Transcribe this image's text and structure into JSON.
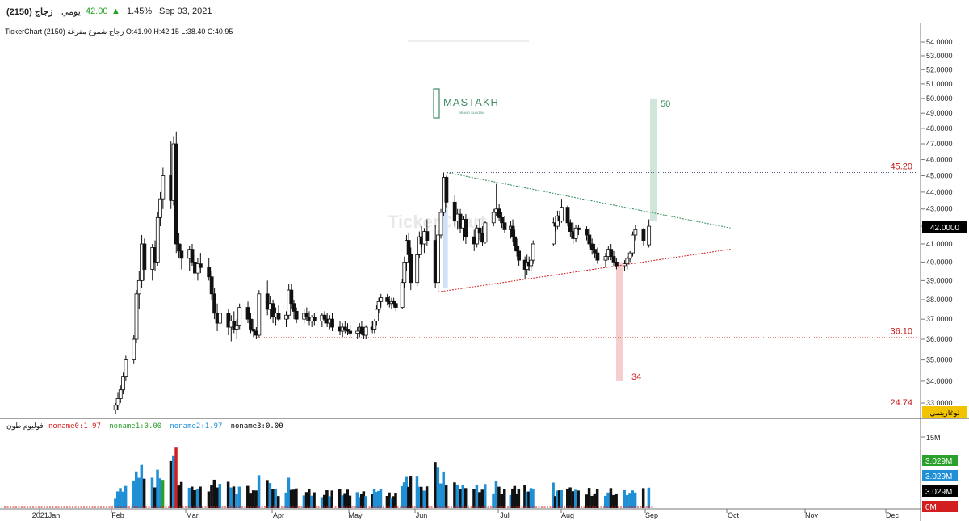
{
  "header": {
    "symbol": "زجاج (2150)",
    "period": "يومي",
    "price": "42.00",
    "change_pct": "1.45%",
    "date": "Sep 03, 2021",
    "up_color": "#22a022"
  },
  "chart_title": "TickerChart زجاج شموع مفرغة (2150)  O:41.90  H:42.15  L:38.40  C:40.95",
  "logo": {
    "text": "MASTAKH",
    "subtext": "BRAND SLOGAN",
    "color": "#3f8a66"
  },
  "watermark": "TickerChart",
  "chart_data": {
    "type": "candlestick",
    "price_axis": {
      "ticks": [
        "54.0000",
        "53.0000",
        "52.0000",
        "51.0000",
        "50.0000",
        "49.0000",
        "48.0000",
        "47.0000",
        "46.0000",
        "45.0000",
        "44.0000",
        "43.0000",
        "42.0000",
        "41.0000",
        "40.0000",
        "39.0000",
        "38.0000",
        "37.0000",
        "36.0000",
        "35.0000",
        "34.0000",
        "33.0000"
      ],
      "current_label": "42.0000",
      "log_label": "لوغاريتمي",
      "range": [
        32.5,
        54.5
      ]
    },
    "levels": [
      {
        "label": "45.20",
        "value": 45.2,
        "color": "#c01818"
      },
      {
        "label": "36.10",
        "value": 36.1,
        "color": "#c01818"
      },
      {
        "label": "24.74",
        "value": 24.74,
        "color": "#c01818"
      }
    ],
    "targets": [
      {
        "label": "50",
        "from": 42.3,
        "to": 50.0,
        "color": "#2e8b57"
      },
      {
        "label": "34",
        "from": 40.0,
        "to": 34.0,
        "color": "#d21e1e"
      }
    ],
    "triangle": {
      "upper": {
        "from": [
          "Jun 10",
          45.2
        ],
        "to": [
          "Sep 30",
          41.9
        ],
        "color": "#2e8b57"
      },
      "lower": {
        "from": [
          "Jun 7",
          38.4
        ],
        "to": [
          "Sep 30",
          40.7
        ],
        "color": "#d21e1e"
      }
    },
    "months": [
      "2021Jan",
      "Feb",
      "Mar",
      "Apr",
      "May",
      "Jun",
      "Jul",
      "Aug",
      "Sep",
      "Oct",
      "Nov",
      "Dec"
    ],
    "ohlc": [
      [
        "Jan 31",
        32.7,
        33.0,
        32.5,
        32.9
      ],
      [
        "Feb 1",
        32.9,
        33.5,
        32.7,
        33.2
      ],
      [
        "Feb 2",
        33.2,
        33.8,
        33.0,
        33.6
      ],
      [
        "Feb 3",
        33.6,
        34.4,
        33.4,
        34.2
      ],
      [
        "Feb 4",
        34.2,
        35.2,
        34.0,
        35.0
      ],
      [
        "Feb 7",
        35.0,
        36.2,
        34.8,
        36.0
      ],
      [
        "Feb 8",
        36.0,
        38.5,
        35.8,
        38.3
      ],
      [
        "Feb 9",
        38.3,
        39.5,
        37.5,
        39.0
      ],
      [
        "Feb 10",
        39.0,
        41.5,
        38.6,
        41.0
      ],
      [
        "Feb 11",
        41.0,
        41.3,
        39.0,
        39.6
      ],
      [
        "Feb 14",
        39.6,
        41.0,
        39.0,
        40.8
      ],
      [
        "Feb 15",
        40.8,
        41.2,
        39.5,
        40.0
      ],
      [
        "Feb 16",
        40.0,
        42.8,
        39.8,
        42.5
      ],
      [
        "Feb 17",
        42.5,
        44.0,
        42.0,
        43.6
      ],
      [
        "Feb 18",
        43.6,
        45.5,
        43.0,
        45.0
      ],
      [
        "Feb 21",
        45.0,
        47.2,
        43.0,
        43.5
      ],
      [
        "Feb 22",
        43.5,
        47.5,
        43.2,
        47.0
      ],
      [
        "Feb 23",
        47.0,
        47.8,
        40.5,
        41.0
      ],
      [
        "Feb 24",
        41.0,
        41.6,
        40.2,
        40.6
      ],
      [
        "Feb 25",
        40.6,
        41.0,
        39.6,
        40.2
      ],
      [
        "Feb 28",
        40.2,
        40.9,
        39.5,
        40.7
      ],
      [
        "Mar 1",
        40.7,
        41.0,
        39.8,
        40.0
      ],
      [
        "Mar 2",
        40.0,
        40.4,
        39.0,
        39.4
      ],
      [
        "Mar 3",
        39.4,
        40.2,
        39.0,
        39.9
      ],
      [
        "Mar 4",
        39.9,
        40.5,
        39.4,
        39.7
      ],
      [
        "Mar 7",
        39.7,
        40.2,
        39.0,
        39.2
      ],
      [
        "Mar 8",
        39.2,
        39.5,
        38.0,
        38.3
      ],
      [
        "Mar 9",
        38.3,
        38.6,
        37.0,
        37.3
      ],
      [
        "Mar 10",
        37.3,
        37.8,
        36.4,
        36.8
      ],
      [
        "Mar 11",
        36.8,
        37.6,
        36.2,
        37.3
      ],
      [
        "Mar 14",
        37.3,
        37.5,
        36.2,
        36.6
      ],
      [
        "Mar 15",
        36.6,
        37.2,
        35.9,
        36.9
      ],
      [
        "Mar 16",
        36.9,
        37.4,
        36.3,
        36.5
      ],
      [
        "Mar 17",
        36.5,
        37.0,
        36.0,
        36.7
      ],
      [
        "Mar 18",
        36.7,
        37.8,
        36.5,
        37.6
      ],
      [
        "Mar 21",
        37.6,
        37.9,
        36.8,
        37.0
      ],
      [
        "Mar 22",
        37.0,
        37.3,
        36.3,
        36.5
      ],
      [
        "Mar 23",
        36.5,
        37.0,
        36.1,
        36.4
      ],
      [
        "Mar 24",
        36.4,
        36.6,
        36.0,
        36.2
      ],
      [
        "Mar 25",
        36.2,
        38.5,
        36.1,
        38.3
      ],
      [
        "Mar 28",
        38.3,
        39.0,
        37.2,
        37.5
      ],
      [
        "Mar 29",
        37.5,
        38.2,
        37.0,
        37.8
      ],
      [
        "Mar 30",
        37.8,
        38.0,
        36.8,
        37.1
      ],
      [
        "Mar 31",
        37.1,
        37.6,
        36.7,
        37.3
      ],
      [
        "Apr 1",
        37.3,
        37.7,
        36.9,
        37.0
      ],
      [
        "Apr 4",
        37.0,
        37.4,
        36.6,
        37.2
      ],
      [
        "Apr 5",
        37.2,
        38.8,
        37.0,
        38.5
      ],
      [
        "Apr 6",
        38.5,
        38.8,
        37.5,
        37.8
      ],
      [
        "Apr 7",
        37.8,
        38.0,
        37.0,
        37.4
      ],
      [
        "Apr 8",
        37.4,
        37.6,
        36.8,
        37.0
      ],
      [
        "Apr 11",
        37.0,
        37.5,
        36.8,
        37.3
      ],
      [
        "Apr 12",
        37.3,
        37.6,
        36.9,
        37.1
      ],
      [
        "Apr 13",
        37.1,
        37.4,
        36.7,
        36.9
      ],
      [
        "Apr 14",
        36.9,
        37.2,
        36.6,
        37.1
      ],
      [
        "Apr 15",
        37.1,
        37.3,
        36.7,
        36.9
      ],
      [
        "Apr 18",
        36.9,
        37.3,
        36.6,
        37.2
      ],
      [
        "Apr 19",
        37.2,
        37.4,
        36.8,
        37.0
      ],
      [
        "Apr 20",
        37.0,
        37.3,
        36.6,
        36.8
      ],
      [
        "Apr 21",
        36.8,
        37.2,
        36.5,
        37.0
      ],
      [
        "Apr 22",
        37.0,
        37.3,
        36.4,
        36.6
      ],
      [
        "Apr 25",
        36.6,
        36.9,
        36.2,
        36.4
      ],
      [
        "Apr 26",
        36.4,
        36.8,
        36.1,
        36.6
      ],
      [
        "Apr 27",
        36.6,
        36.9,
        36.3,
        36.5
      ],
      [
        "Apr 28",
        36.5,
        36.8,
        36.2,
        36.4
      ],
      [
        "Apr 29",
        36.4,
        36.7,
        36.1,
        36.3
      ],
      [
        "May 2",
        36.3,
        36.6,
        36.0,
        36.4
      ],
      [
        "May 3",
        36.4,
        36.8,
        36.1,
        36.6
      ],
      [
        "May 4",
        36.6,
        36.9,
        36.2,
        36.3
      ],
      [
        "May 5",
        36.3,
        36.6,
        36.0,
        36.2
      ],
      [
        "May 6",
        36.2,
        36.7,
        36.0,
        36.6
      ],
      [
        "May 9",
        36.6,
        36.9,
        36.3,
        36.5
      ],
      [
        "May 10",
        36.5,
        37.0,
        36.3,
        36.9
      ],
      [
        "May 11",
        36.9,
        37.7,
        36.7,
        37.5
      ],
      [
        "May 12",
        37.5,
        38.1,
        37.3,
        37.9
      ],
      [
        "May 13",
        37.9,
        38.3,
        37.6,
        38.1
      ],
      [
        "May 16",
        38.1,
        38.3,
        37.7,
        37.9
      ],
      [
        "May 17",
        37.9,
        38.2,
        37.6,
        37.8
      ],
      [
        "May 18",
        37.8,
        38.1,
        37.5,
        37.9
      ],
      [
        "May 19",
        37.9,
        38.1,
        37.6,
        37.8
      ],
      [
        "May 20",
        37.8,
        37.9,
        37.4,
        37.6
      ],
      [
        "May 23",
        37.6,
        39.1,
        37.5,
        38.9
      ],
      [
        "May 24",
        38.9,
        40.3,
        38.6,
        40.0
      ],
      [
        "May 25",
        40.0,
        41.5,
        39.5,
        41.2
      ],
      [
        "May 26",
        41.2,
        41.6,
        40.0,
        40.4
      ],
      [
        "May 27",
        40.4,
        40.8,
        38.5,
        38.9
      ],
      [
        "May 30",
        38.9,
        40.6,
        38.7,
        40.4
      ],
      [
        "May 31",
        40.4,
        41.7,
        40.2,
        41.4
      ],
      [
        "Jun 1",
        41.4,
        42.0,
        40.8,
        41.0
      ],
      [
        "Jun 2",
        41.0,
        41.9,
        40.5,
        41.7
      ],
      [
        "Jun 3",
        41.7,
        42.4,
        40.9,
        41.2
      ],
      [
        "Jun 6",
        41.2,
        42.1,
        38.6,
        38.9
      ],
      [
        "Jun 7",
        38.9,
        41.8,
        38.4,
        41.5
      ],
      [
        "Jun 8",
        41.5,
        43.0,
        41.3,
        42.8
      ],
      [
        "Jun 9",
        42.8,
        45.2,
        42.6,
        44.9
      ],
      [
        "Jun 10",
        44.9,
        45.0,
        43.1,
        43.4
      ],
      [
        "Jun 13",
        43.4,
        43.8,
        42.0,
        42.3
      ],
      [
        "Jun 14",
        42.3,
        43.0,
        41.8,
        42.7
      ],
      [
        "Jun 15",
        42.7,
        43.0,
        41.6,
        41.9
      ],
      [
        "Jun 16",
        41.9,
        42.6,
        41.2,
        42.4
      ],
      [
        "Jun 17",
        42.4,
        42.7,
        41.0,
        41.4
      ],
      [
        "Jun 20",
        41.4,
        41.8,
        40.6,
        41.0
      ],
      [
        "Jun 21",
        41.0,
        42.1,
        40.8,
        41.9
      ],
      [
        "Jun 22",
        41.9,
        42.4,
        41.2,
        41.6
      ],
      [
        "Jun 23",
        41.6,
        42.0,
        40.9,
        41.1
      ],
      [
        "Jun 24",
        41.1,
        42.3,
        41.0,
        42.2
      ],
      [
        "Jun 27",
        42.2,
        43.0,
        42.0,
        42.8
      ],
      [
        "Jun 28",
        42.8,
        44.5,
        42.6,
        43.0
      ],
      [
        "Jun 29",
        43.0,
        43.3,
        42.3,
        42.5
      ],
      [
        "Jun 30",
        42.5,
        42.8,
        41.9,
        42.2
      ],
      [
        "Jul 1",
        42.2,
        42.6,
        41.6,
        41.8
      ],
      [
        "Jul 4",
        41.8,
        42.3,
        41.3,
        42.0
      ],
      [
        "Jul 5",
        42.0,
        42.4,
        41.1,
        41.4
      ],
      [
        "Jul 6",
        41.4,
        41.8,
        40.6,
        40.9
      ],
      [
        "Jul 7",
        40.9,
        41.3,
        40.3,
        40.6
      ],
      [
        "Jul 8",
        40.6,
        40.9,
        39.8,
        40.1
      ],
      [
        "Jul 11",
        40.1,
        40.3,
        39.1,
        39.6
      ],
      [
        "Jul 12",
        39.6,
        40.4,
        39.3,
        40.0
      ],
      [
        "Jul 13",
        40.0,
        40.3,
        39.5,
        39.8
      ],
      [
        "Jul 14",
        39.8,
        40.3,
        39.5,
        40.1
      ],
      [
        "Jul 15",
        40.1,
        41.2,
        39.9,
        41.0
      ],
      [
        "Jul 25",
        41.0,
        42.5,
        40.9,
        42.2
      ],
      [
        "Jul 26",
        42.2,
        42.6,
        41.7,
        42.0
      ],
      [
        "Jul 27",
        42.0,
        42.9,
        41.8,
        42.6
      ],
      [
        "Jul 28",
        42.6,
        42.9,
        42.1,
        42.3
      ],
      [
        "Jul 29",
        42.3,
        43.6,
        42.2,
        43.1
      ],
      [
        "Aug 1",
        43.1,
        43.2,
        42.0,
        42.2
      ],
      [
        "Aug 2",
        42.2,
        42.4,
        41.4,
        41.7
      ],
      [
        "Aug 3",
        41.7,
        42.2,
        41.0,
        41.3
      ],
      [
        "Aug 4",
        41.3,
        42.1,
        41.1,
        41.9
      ],
      [
        "Aug 5",
        41.9,
        42.1,
        41.5,
        41.8
      ],
      [
        "Aug 8",
        41.8,
        42.0,
        41.2,
        41.5
      ],
      [
        "Aug 9",
        41.5,
        41.9,
        40.8,
        41.0
      ],
      [
        "Aug 10",
        41.0,
        41.3,
        40.4,
        40.7
      ],
      [
        "Aug 11",
        40.7,
        41.0,
        40.2,
        40.5
      ],
      [
        "Aug 12",
        40.5,
        40.8,
        39.9,
        40.1
      ],
      [
        "Aug 15",
        40.1,
        40.5,
        39.7,
        40.3
      ],
      [
        "Aug 16",
        40.3,
        40.9,
        40.1,
        40.7
      ],
      [
        "Aug 17",
        40.7,
        41.0,
        40.1,
        40.3
      ],
      [
        "Aug 18",
        40.3,
        40.6,
        39.8,
        40.0
      ],
      [
        "Aug 19",
        40.0,
        40.2,
        39.6,
        39.8
      ],
      [
        "Aug 22",
        39.8,
        40.1,
        39.5,
        39.9
      ],
      [
        "Aug 23",
        39.9,
        40.3,
        39.6,
        40.2
      ],
      [
        "Aug 24",
        40.2,
        40.6,
        40.0,
        40.5
      ],
      [
        "Aug 25",
        40.5,
        41.7,
        40.3,
        41.5
      ],
      [
        "Aug 26",
        41.5,
        42.1,
        41.2,
        41.8
      ],
      [
        "Aug 29",
        41.8,
        41.9,
        40.9,
        41.2
      ],
      [
        "Aug 31",
        40.95,
        42.4,
        40.8,
        42.0
      ]
    ],
    "volume": {
      "legend_title": "فوليوم طون",
      "legend": [
        {
          "label": "noname0:1.97",
          "color": "#d21e1e"
        },
        {
          "label": "noname1:0.00",
          "color": "#2ca02c"
        },
        {
          "label": "noname2:1.97",
          "color": "#1f8fd6"
        },
        {
          "label": "noname3:0.00",
          "color": "#000000"
        }
      ],
      "axis_label": "15M",
      "badges": [
        {
          "label": "3.029M",
          "color": "#2ca02c"
        },
        {
          "label": "3.029M",
          "color": "#1f8fd6"
        },
        {
          "label": "3.029M",
          "color": "#000000"
        },
        {
          "label": "0M",
          "color": "#d21e1e"
        }
      ],
      "max": 15
    }
  }
}
